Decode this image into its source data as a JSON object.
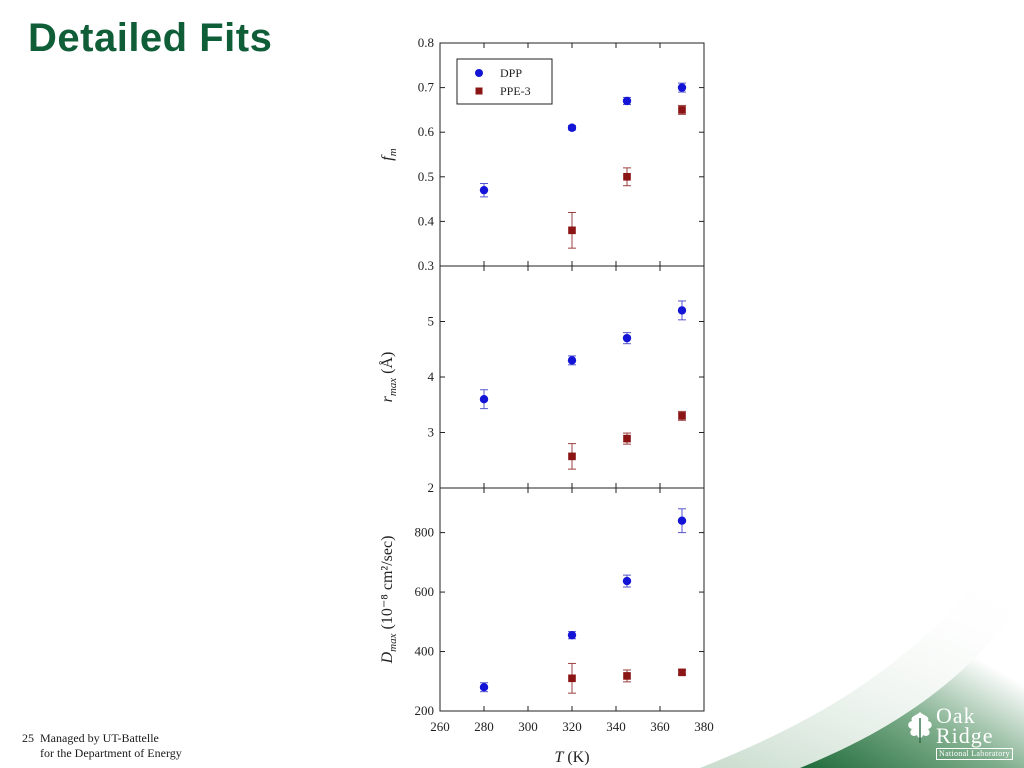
{
  "slide": {
    "title": "Detailed Fits",
    "slide_number": "25",
    "footer_line1": "Managed by UT-Battelle",
    "footer_line2": "for the Department of Energy"
  },
  "logo": {
    "word1": "Oak",
    "word2": "Ridge",
    "tagline": "National Laboratory",
    "color": "#ffffff"
  },
  "colors": {
    "title": "#0f5e38",
    "dpp": "#1414d6",
    "ppe3": "#8b1414",
    "dpp_error": "#5555cc",
    "ppe3_error": "#9a4040",
    "corner_green": "#1f6b3a"
  },
  "chart_data": {
    "type": "scatter",
    "shared_x": {
      "label_italic": "T",
      "label_rest": " (K)",
      "range": [
        260,
        380
      ],
      "ticks": [
        260,
        280,
        300,
        320,
        340,
        360,
        380
      ]
    },
    "legend": {
      "placement": "top-left of top panel",
      "entries": [
        {
          "name": "DPP",
          "marker": "circle"
        },
        {
          "name": "PPE-3",
          "marker": "square"
        }
      ]
    },
    "panels": [
      {
        "id": "fm",
        "ylabel_italic": "f",
        "ylabel_sub": "m",
        "ylabel_rest": "",
        "ylim": [
          0.3,
          0.8
        ],
        "yticks": [
          "0.3",
          "0.4",
          "0.5",
          "0.6",
          "0.7",
          "0.8"
        ],
        "series": [
          {
            "name": "DPP",
            "x": [
              280,
              320,
              345,
              370
            ],
            "y": [
              0.47,
              0.61,
              0.67,
              0.7
            ],
            "err": [
              0.015,
              0.005,
              0.008,
              0.01
            ]
          },
          {
            "name": "PPE-3",
            "x": [
              320,
              345,
              370
            ],
            "y": [
              0.38,
              0.5,
              0.65
            ],
            "err": [
              0.04,
              0.02,
              0.01
            ]
          }
        ]
      },
      {
        "id": "rmax",
        "ylabel_italic": "r",
        "ylabel_sub": "max",
        "ylabel_rest": " (Å)",
        "ylim": [
          2,
          6
        ],
        "yticks": [
          "2",
          "3",
          "4",
          "5"
        ],
        "series": [
          {
            "name": "DPP",
            "x": [
              280,
              320,
              345,
              370
            ],
            "y": [
              3.6,
              4.3,
              4.7,
              5.2
            ],
            "err": [
              0.17,
              0.08,
              0.1,
              0.17
            ]
          },
          {
            "name": "PPE-3",
            "x": [
              320,
              345,
              370
            ],
            "y": [
              2.57,
              2.89,
              3.3
            ],
            "err": [
              0.23,
              0.1,
              0.08
            ]
          }
        ]
      },
      {
        "id": "dmax",
        "ylabel_italic": "D",
        "ylabel_sub": "max",
        "ylabel_rest": " (10⁻⁸ cm²/sec)",
        "ylim": [
          200,
          950
        ],
        "yticks": [
          "200",
          "400",
          "600",
          "800"
        ],
        "series": [
          {
            "name": "DPP",
            "x": [
              280,
              320,
              345,
              370
            ],
            "y": [
              280,
              455,
              637,
              840
            ],
            "err": [
              15,
              12,
              20,
              40
            ]
          },
          {
            "name": "PPE-3",
            "x": [
              320,
              345,
              370
            ],
            "y": [
              310,
              318,
              330
            ],
            "err": [
              50,
              20,
              8
            ]
          }
        ]
      }
    ]
  }
}
